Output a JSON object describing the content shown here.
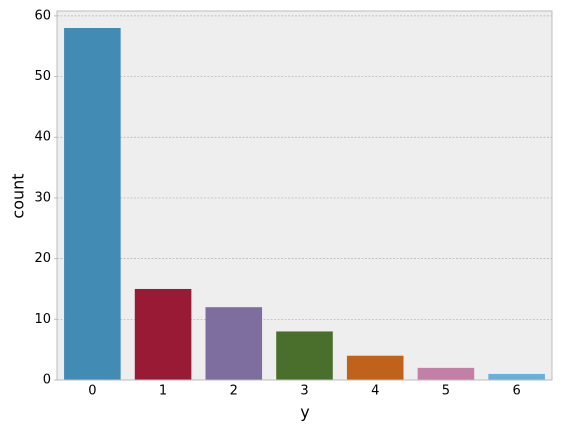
{
  "chart_data": {
    "type": "bar",
    "x_label": "y",
    "y_label": "count",
    "categories": [
      "0",
      "1",
      "2",
      "3",
      "4",
      "5",
      "6"
    ],
    "values": [
      58,
      15,
      12,
      8,
      4,
      2,
      1
    ],
    "colors": [
      "#428bb5",
      "#991a35",
      "#7e6ea0",
      "#4a6e2b",
      "#c0621c",
      "#c47fa6",
      "#6ab0dd"
    ],
    "ylim": [
      0,
      60.8
    ],
    "yticks": [
      0,
      10,
      20,
      30,
      40,
      50,
      60
    ],
    "grid": true
  }
}
